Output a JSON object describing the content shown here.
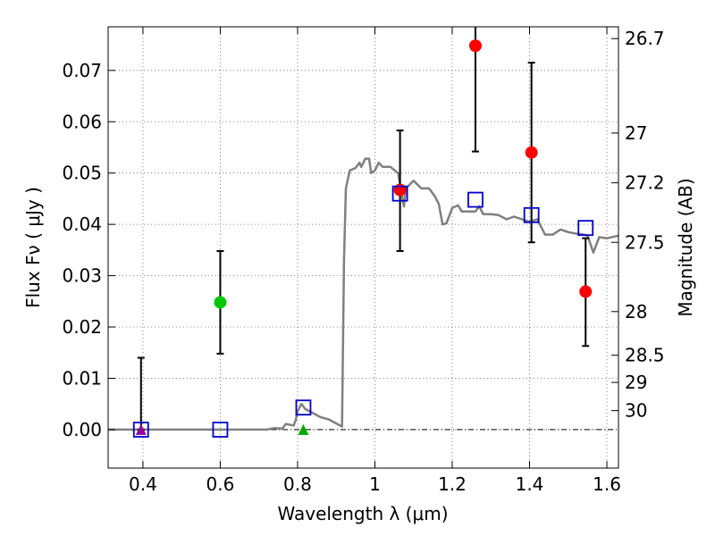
{
  "chart_data": {
    "type": "scatter",
    "title": "",
    "xlabel": "Wavelength  λ (μm)",
    "ylabel": "Flux  Fν  ( μJy )",
    "ylabel_right": "Magnitude (AB)",
    "xlim": [
      0.31,
      1.63
    ],
    "ylim": [
      -0.0075,
      0.0785
    ],
    "x_ticks": [
      0.4,
      0.6,
      0.8,
      1.0,
      1.2,
      1.4,
      1.6
    ],
    "x_tick_labels": [
      "0.4",
      "0.6",
      "0.8",
      "1",
      "1.2",
      "1.4",
      "1.6"
    ],
    "y_ticks": [
      0.0,
      0.01,
      0.02,
      0.03,
      0.04,
      0.05,
      0.06,
      0.07
    ],
    "y_tick_labels": [
      "0.00",
      "0.01",
      "0.02",
      "0.03",
      "0.04",
      "0.05",
      "0.06",
      "0.07"
    ],
    "right_ticks": [
      {
        "label": "26.7",
        "flux": 0.0762
      },
      {
        "label": "27",
        "flux": 0.0578
      },
      {
        "label": "27.2",
        "flux": 0.0481
      },
      {
        "label": "27.5",
        "flux": 0.0365
      },
      {
        "label": "28",
        "flux": 0.023
      },
      {
        "label": "28.5",
        "flux": 0.0145
      },
      {
        "label": "29",
        "flux": 0.0092
      },
      {
        "label": "30",
        "flux": 0.0037
      }
    ],
    "grid": true,
    "colors": {
      "model": "#808080",
      "detection": "#ff0000",
      "green_point": "#00c800",
      "model_box": "#0000cc",
      "upper_limit_purple": "#990099",
      "upper_limit_green": "#00aa00",
      "errorbar": "#000000",
      "zero_line": "#000000"
    },
    "series": [
      {
        "name": "SED model",
        "kind": "line",
        "points": [
          [
            0.31,
            0.0
          ],
          [
            0.72,
            0.0
          ],
          [
            0.74,
            0.0003
          ],
          [
            0.76,
            0.0002
          ],
          [
            0.77,
            0.0011
          ],
          [
            0.79,
            0.0008
          ],
          [
            0.795,
            0.0018
          ],
          [
            0.8,
            0.0036
          ],
          [
            0.81,
            0.005
          ],
          [
            0.82,
            0.004
          ],
          [
            0.84,
            0.0032
          ],
          [
            0.86,
            0.0024
          ],
          [
            0.88,
            0.002
          ],
          [
            0.9,
            0.0012
          ],
          [
            0.915,
            0.0006
          ],
          [
            0.92,
            0.033
          ],
          [
            0.925,
            0.047
          ],
          [
            0.935,
            0.0505
          ],
          [
            0.95,
            0.051
          ],
          [
            0.96,
            0.052
          ],
          [
            0.965,
            0.0512
          ],
          [
            0.975,
            0.0528
          ],
          [
            0.985,
            0.0528
          ],
          [
            0.99,
            0.05
          ],
          [
            1.0,
            0.0505
          ],
          [
            1.01,
            0.052
          ],
          [
            1.02,
            0.0512
          ],
          [
            1.04,
            0.0512
          ],
          [
            1.06,
            0.05
          ],
          [
            1.075,
            0.0435
          ],
          [
            1.08,
            0.047
          ],
          [
            1.1,
            0.0485
          ],
          [
            1.12,
            0.047
          ],
          [
            1.14,
            0.047
          ],
          [
            1.155,
            0.0455
          ],
          [
            1.165,
            0.044
          ],
          [
            1.175,
            0.04
          ],
          [
            1.185,
            0.0402
          ],
          [
            1.2,
            0.0432
          ],
          [
            1.215,
            0.0437
          ],
          [
            1.225,
            0.0425
          ],
          [
            1.24,
            0.0425
          ],
          [
            1.26,
            0.0425
          ],
          [
            1.27,
            0.0435
          ],
          [
            1.28,
            0.042
          ],
          [
            1.3,
            0.042
          ],
          [
            1.32,
            0.0418
          ],
          [
            1.34,
            0.041
          ],
          [
            1.36,
            0.0415
          ],
          [
            1.38,
            0.041
          ],
          [
            1.4,
            0.0405
          ],
          [
            1.42,
            0.041
          ],
          [
            1.44,
            0.038
          ],
          [
            1.46,
            0.038
          ],
          [
            1.48,
            0.039
          ],
          [
            1.5,
            0.0385
          ],
          [
            1.52,
            0.0382
          ],
          [
            1.54,
            0.038
          ],
          [
            1.55,
            0.0378
          ],
          [
            1.565,
            0.0345
          ],
          [
            1.58,
            0.0375
          ],
          [
            1.6,
            0.0373
          ],
          [
            1.63,
            0.0378
          ]
        ]
      },
      {
        "name": "model photometry",
        "kind": "open-square",
        "points": [
          [
            0.395,
            0.0
          ],
          [
            0.6,
            0.0
          ],
          [
            0.815,
            0.0043
          ],
          [
            1.065,
            0.046
          ],
          [
            1.26,
            0.0448
          ],
          [
            1.405,
            0.0418
          ],
          [
            1.545,
            0.0393
          ]
        ]
      },
      {
        "name": "detections",
        "kind": "filled-circle",
        "points": [
          {
            "x": 1.065,
            "y": 0.0467,
            "err_low": 0.0348,
            "err_high": 0.0583
          },
          {
            "x": 1.26,
            "y": 0.0748,
            "err_low": 0.0542,
            "err_high": 0.0785
          },
          {
            "x": 1.405,
            "y": 0.054,
            "err_low": 0.0365,
            "err_high": 0.0715
          },
          {
            "x": 1.545,
            "y": 0.0269,
            "err_low": 0.0163,
            "err_high": 0.0373
          }
        ]
      },
      {
        "name": "green detection",
        "kind": "filled-circle",
        "points": [
          {
            "x": 0.6,
            "y": 0.0248,
            "err_low": 0.0148,
            "err_high": 0.0348
          }
        ]
      },
      {
        "name": "upper limits",
        "kind": "triangle",
        "points": [
          {
            "x": 0.395,
            "y": 0.0,
            "err_low": 0.0,
            "err_high": 0.014,
            "color": "purple"
          },
          {
            "x": 0.815,
            "y": 0.0,
            "err_low": 0.0,
            "err_high": 0.0,
            "color": "green"
          }
        ]
      }
    ]
  }
}
